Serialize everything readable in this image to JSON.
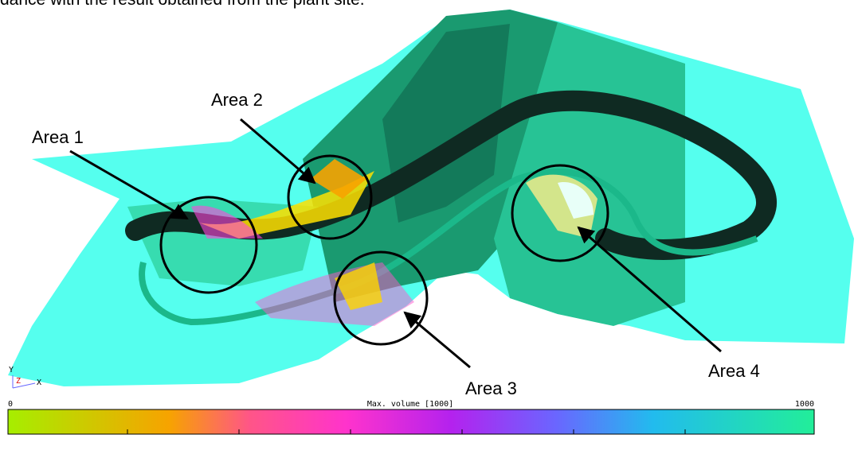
{
  "caption_fragment": "dance with the result obtained from the plant site.",
  "annotations": [
    "Area 1",
    "Area 2",
    "Area 3",
    "Area 4"
  ],
  "axes_triad": {
    "y": "Y",
    "z": "Z",
    "x": "X"
  },
  "colorbar": {
    "min_label": "0",
    "title": "Max. volume [1000]",
    "max_label": "1000"
  }
}
